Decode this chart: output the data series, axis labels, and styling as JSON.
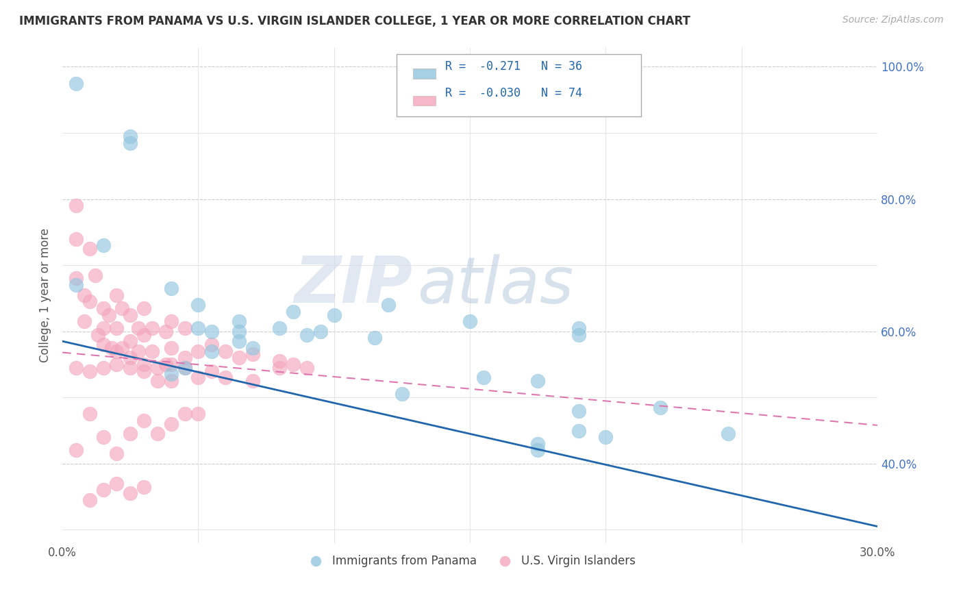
{
  "title": "IMMIGRANTS FROM PANAMA VS U.S. VIRGIN ISLANDER COLLEGE, 1 YEAR OR MORE CORRELATION CHART",
  "source": "Source: ZipAtlas.com",
  "ylabel": "College, 1 year or more",
  "watermark_zip": "ZIP",
  "watermark_atlas": "atlas",
  "xlim": [
    0.0,
    0.3
  ],
  "ylim": [
    0.28,
    1.03
  ],
  "blue_color": "#92c5de",
  "pink_color": "#f4a6bc",
  "blue_line_color": "#2166ac",
  "pink_line_color": "#de77ae",
  "legend_blue_label": "Immigrants from Panama",
  "legend_pink_label": "U.S. Virgin Islanders",
  "R_blue": -0.271,
  "N_blue": 36,
  "R_pink": -0.03,
  "N_pink": 74,
  "blue_line_x0": 0.0,
  "blue_line_y0": 0.585,
  "blue_line_x1": 0.3,
  "blue_line_y1": 0.305,
  "pink_line_x0": 0.0,
  "pink_line_y0": 0.568,
  "pink_line_x1": 0.3,
  "pink_line_y1": 0.458,
  "blue_points_x": [
    0.005,
    0.025,
    0.015,
    0.005,
    0.04,
    0.05,
    0.05,
    0.055,
    0.065,
    0.065,
    0.07,
    0.08,
    0.09,
    0.085,
    0.1,
    0.12,
    0.155,
    0.175,
    0.22,
    0.245,
    0.065,
    0.095,
    0.115,
    0.19,
    0.2,
    0.045,
    0.04,
    0.055,
    0.125,
    0.15,
    0.19,
    0.19,
    0.19,
    0.025,
    0.175,
    0.175
  ],
  "blue_points_y": [
    0.975,
    0.885,
    0.73,
    0.67,
    0.665,
    0.64,
    0.605,
    0.6,
    0.6,
    0.615,
    0.575,
    0.605,
    0.595,
    0.63,
    0.625,
    0.64,
    0.53,
    0.525,
    0.485,
    0.445,
    0.585,
    0.6,
    0.59,
    0.48,
    0.44,
    0.545,
    0.535,
    0.57,
    0.505,
    0.615,
    0.605,
    0.595,
    0.45,
    0.895,
    0.43,
    0.42
  ],
  "pink_points_x": [
    0.005,
    0.005,
    0.005,
    0.008,
    0.008,
    0.01,
    0.01,
    0.012,
    0.013,
    0.015,
    0.015,
    0.015,
    0.017,
    0.018,
    0.02,
    0.02,
    0.02,
    0.022,
    0.022,
    0.025,
    0.025,
    0.025,
    0.028,
    0.028,
    0.03,
    0.03,
    0.03,
    0.033,
    0.033,
    0.035,
    0.038,
    0.038,
    0.04,
    0.04,
    0.04,
    0.045,
    0.045,
    0.05,
    0.05,
    0.055,
    0.055,
    0.06,
    0.06,
    0.065,
    0.07,
    0.07,
    0.005,
    0.01,
    0.015,
    0.02,
    0.025,
    0.03,
    0.035,
    0.04,
    0.045,
    0.005,
    0.01,
    0.015,
    0.02,
    0.025,
    0.03,
    0.035,
    0.04,
    0.045,
    0.05,
    0.08,
    0.08,
    0.085,
    0.09,
    0.01,
    0.015,
    0.02,
    0.025,
    0.03
  ],
  "pink_points_y": [
    0.79,
    0.74,
    0.68,
    0.655,
    0.615,
    0.725,
    0.645,
    0.685,
    0.595,
    0.635,
    0.605,
    0.58,
    0.625,
    0.575,
    0.655,
    0.605,
    0.57,
    0.635,
    0.575,
    0.625,
    0.585,
    0.56,
    0.605,
    0.57,
    0.635,
    0.595,
    0.55,
    0.605,
    0.57,
    0.525,
    0.6,
    0.55,
    0.615,
    0.575,
    0.525,
    0.605,
    0.56,
    0.57,
    0.53,
    0.58,
    0.54,
    0.57,
    0.53,
    0.56,
    0.565,
    0.525,
    0.545,
    0.54,
    0.545,
    0.55,
    0.545,
    0.54,
    0.545,
    0.55,
    0.545,
    0.42,
    0.475,
    0.44,
    0.415,
    0.445,
    0.465,
    0.445,
    0.46,
    0.475,
    0.475,
    0.555,
    0.545,
    0.55,
    0.545,
    0.345,
    0.36,
    0.37,
    0.355,
    0.365
  ]
}
